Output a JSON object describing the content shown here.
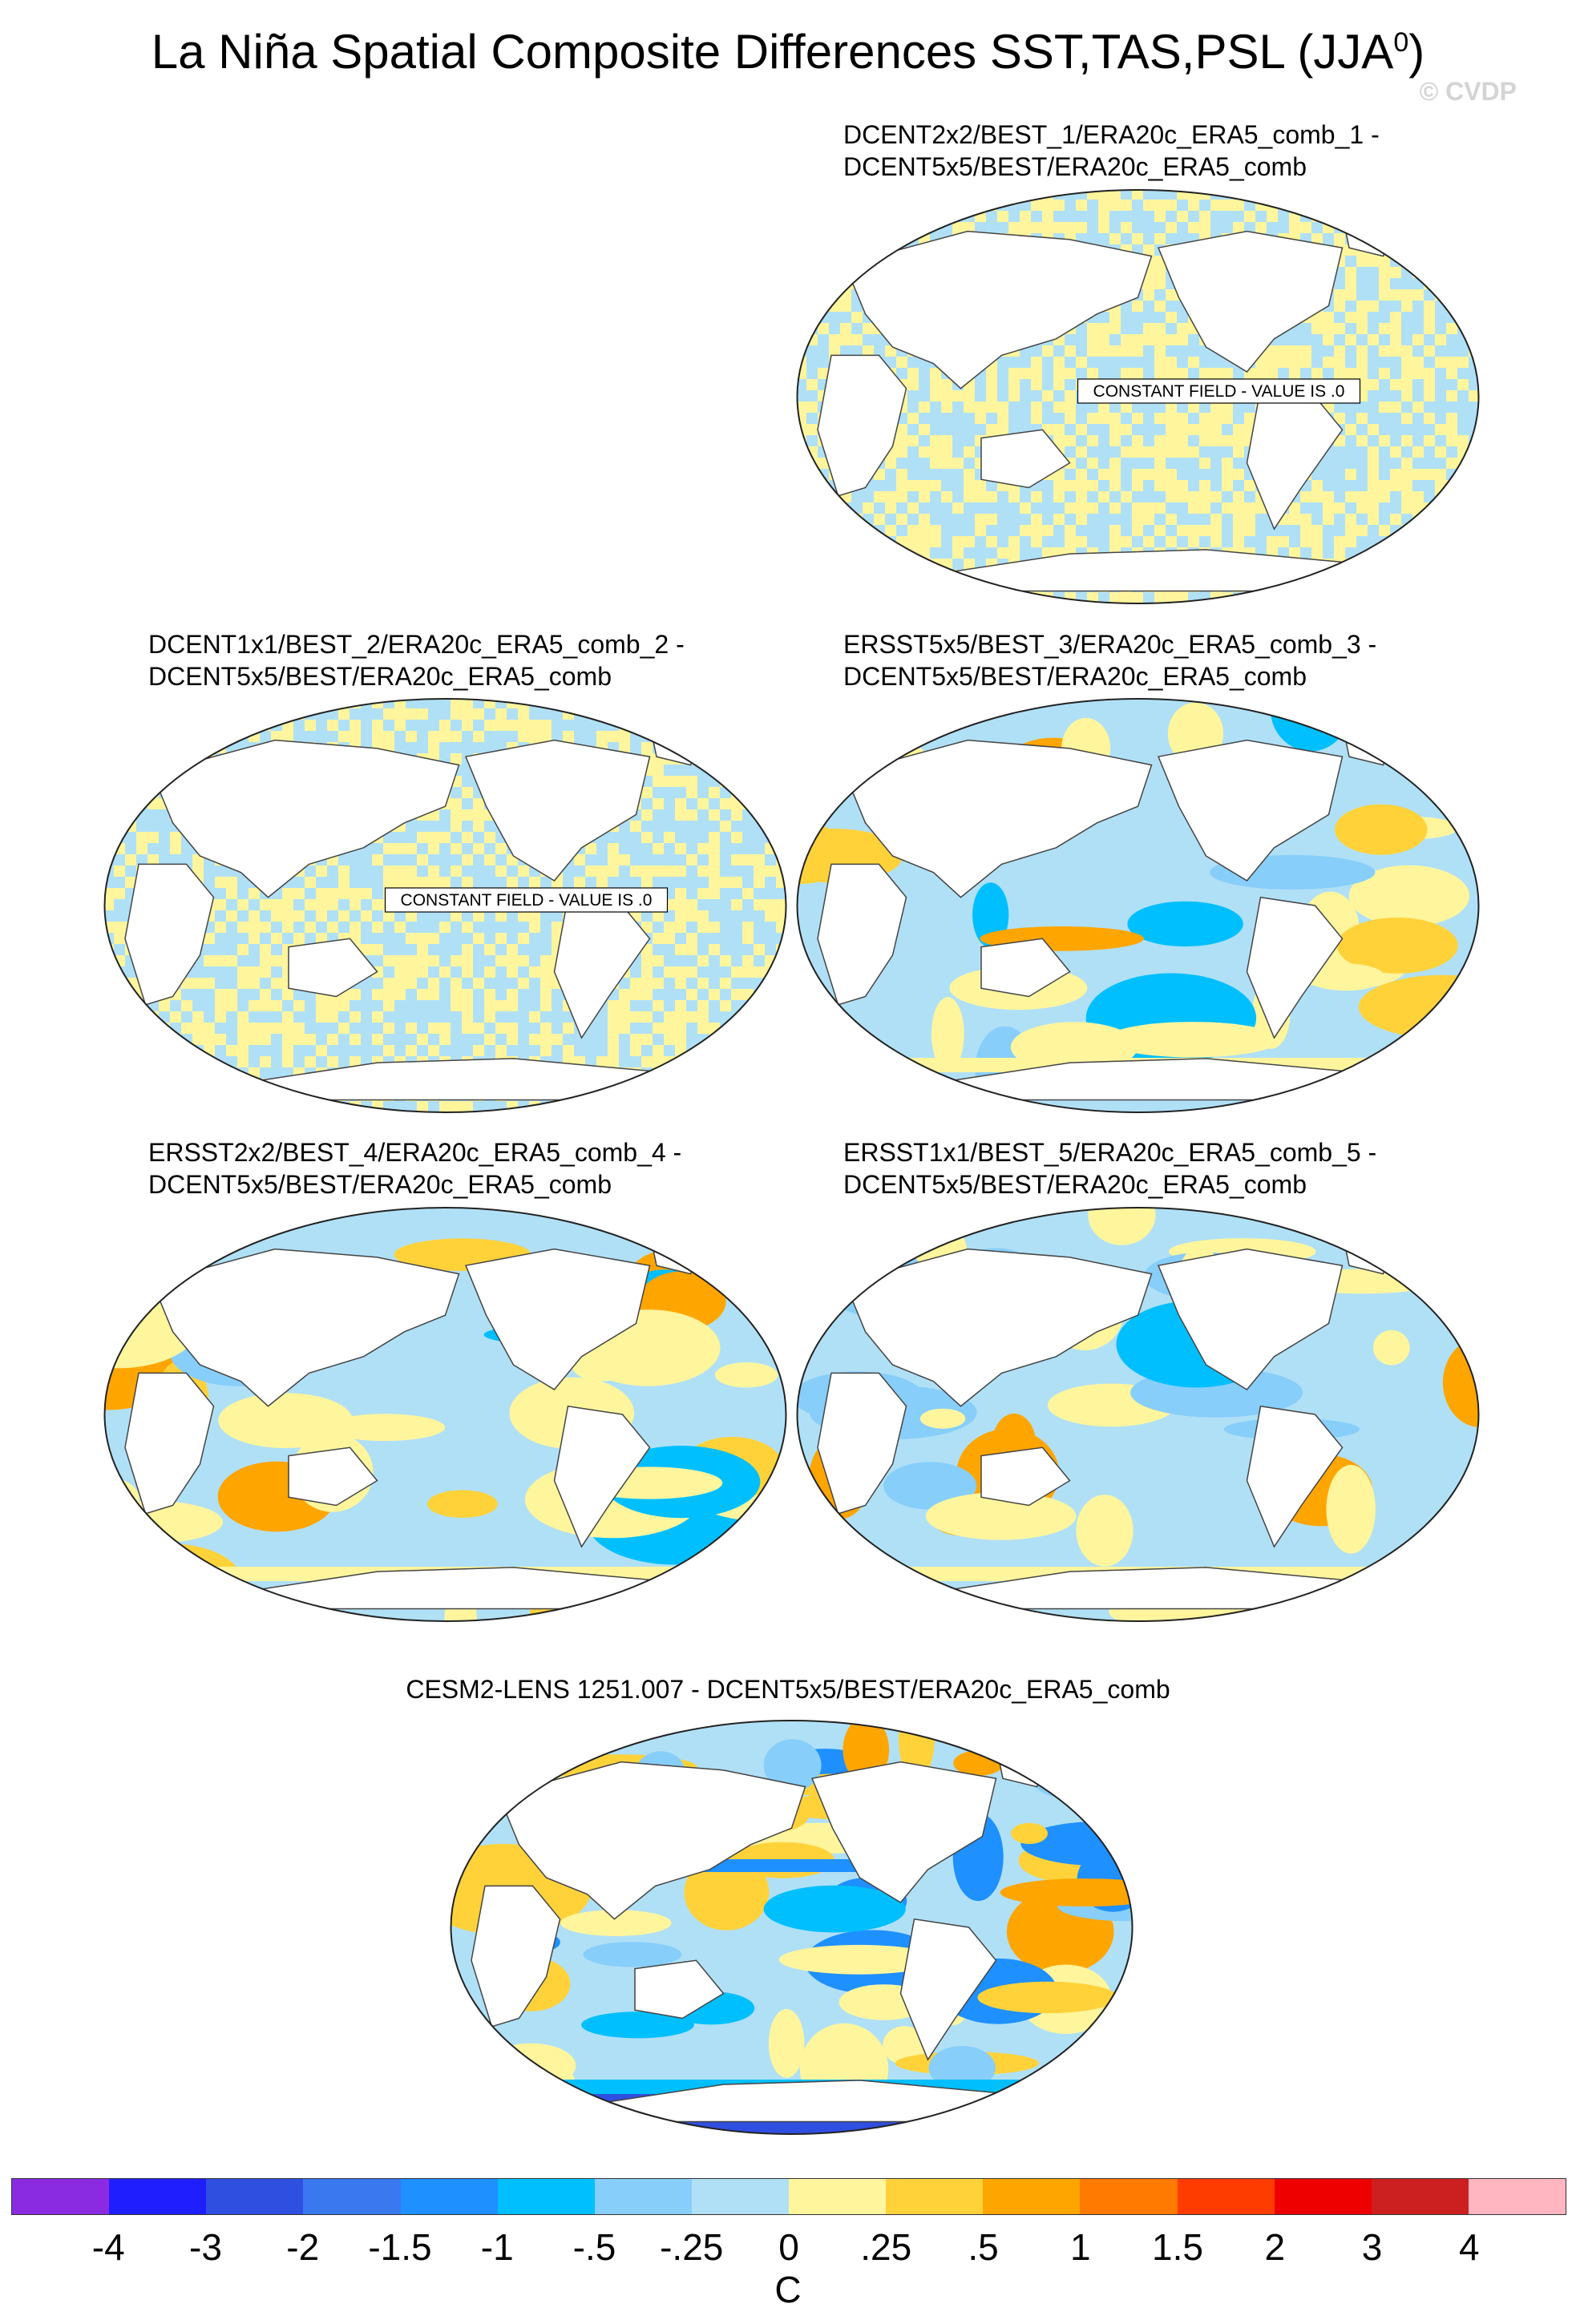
{
  "title": "La Niña Spatial Composite Differences SST,TAS,PSL (JJA",
  "title_sup": "0",
  "title_close": ")",
  "watermark": "© CVDP",
  "constant_note": "CONSTANT FIELD - VALUE IS .0",
  "panels": [
    {
      "id": "p1",
      "line1": "DCENT2x2/BEST_1/ERA20c_ERA5_comb_1 -",
      "line2": "DCENT5x5/BEST/ERA20c_ERA5_comb",
      "pattern": "constant"
    },
    {
      "id": "p2",
      "line1": "DCENT1x1/BEST_2/ERA20c_ERA5_comb_2 -",
      "line2": "DCENT5x5/BEST/ERA20c_ERA5_comb",
      "pattern": "constant"
    },
    {
      "id": "p3",
      "line1": "ERSST5x5/BEST_3/ERA20c_ERA5_comb_3 -",
      "line2": "DCENT5x5/BEST/ERA20c_ERA5_comb",
      "pattern": "field"
    },
    {
      "id": "p4",
      "line1": "ERSST2x2/BEST_4/ERA20c_ERA5_comb_4 -",
      "line2": "DCENT5x5/BEST/ERA20c_ERA5_comb",
      "pattern": "field"
    },
    {
      "id": "p5",
      "line1": "ERSST1x1/BEST_5/ERA20c_ERA5_comb_5 -",
      "line2": "DCENT5x5/BEST/ERA20c_ERA5_comb",
      "pattern": "field"
    },
    {
      "id": "p6",
      "line1": "CESM2-LENS 1251.007 - DCENT5x5/BEST/ERA20c_ERA5_comb",
      "line2": "",
      "pattern": "model"
    }
  ],
  "colorbar": {
    "colors": [
      "#8a2be2",
      "#1e1eff",
      "#2f4fe0",
      "#3a78f0",
      "#1e90ff",
      "#00bfff",
      "#87cefa",
      "#b0e0f6",
      "#fff59d",
      "#ffd23a",
      "#ffa500",
      "#ff7a00",
      "#ff3c00",
      "#ee0000",
      "#cc1f1f",
      "#ffb6c1"
    ],
    "ticks": [
      "-4",
      "-3",
      "-2",
      "-1.5",
      "-1",
      "-.5",
      "-.25",
      "0",
      ".25",
      ".5",
      "1",
      "1.5",
      "2",
      "3",
      "4"
    ],
    "units": "C"
  }
}
